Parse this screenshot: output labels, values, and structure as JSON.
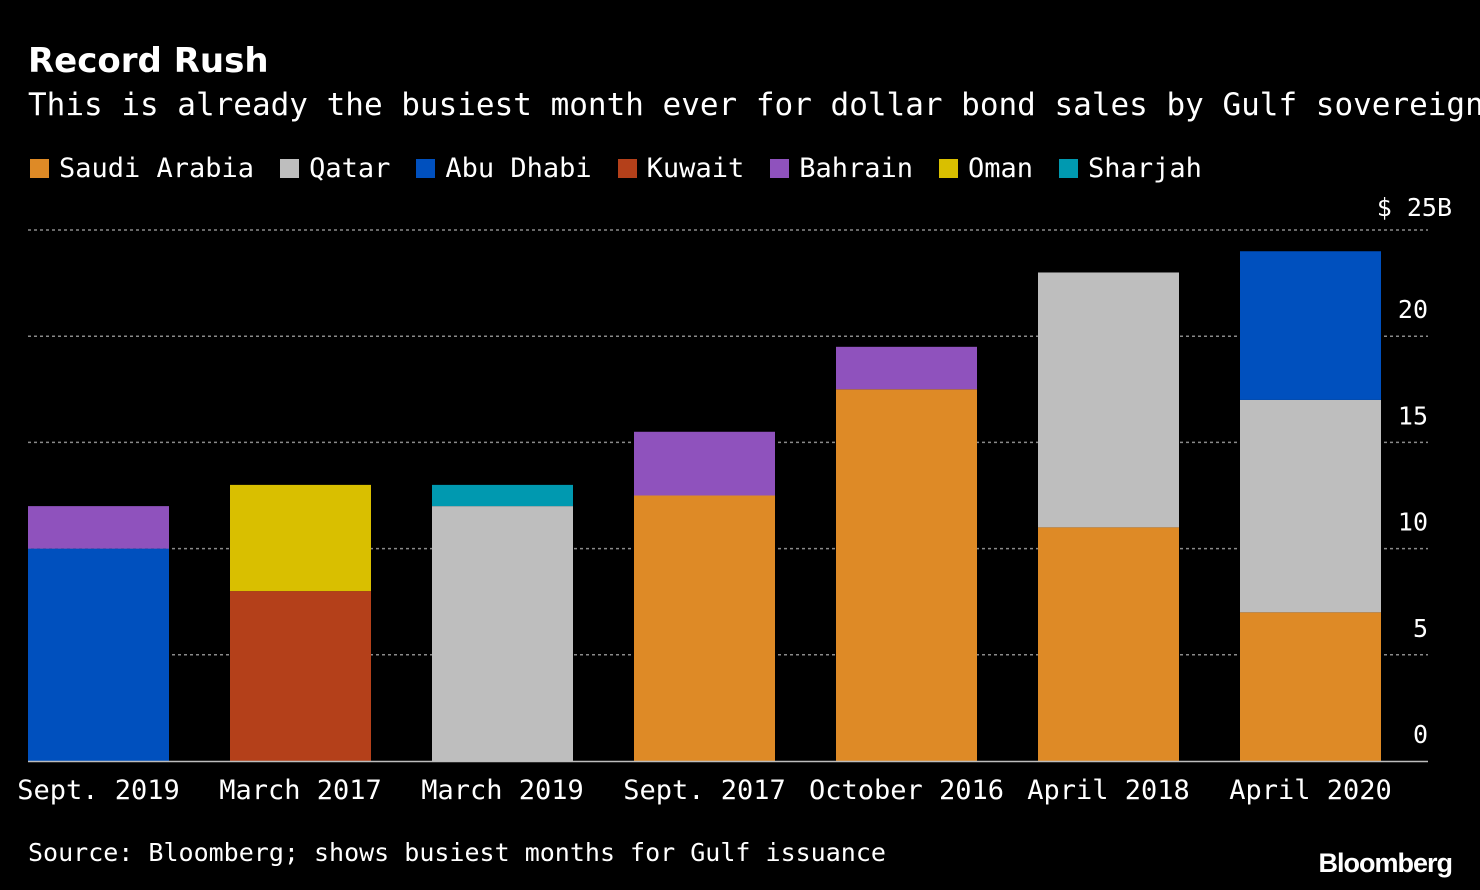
{
  "chart_data": {
    "type": "bar",
    "stacked": true,
    "title": "Record Rush",
    "subtitle": "This is already the busiest month ever for dollar bond sales by Gulf sovereigns",
    "source": "Source: Bloomberg; shows busiest months for Gulf issuance",
    "brand": "Bloomberg",
    "y_top_label": "$ 25B",
    "ylim": [
      0,
      25
    ],
    "yticks": [
      0,
      5,
      10,
      15,
      20
    ],
    "gridlines": [
      5,
      10,
      15,
      20,
      25
    ],
    "categories": [
      "Sept. 2019",
      "March 2017",
      "March 2019",
      "Sept. 2017",
      "October 2016",
      "April 2018",
      "April 2020"
    ],
    "legend": [
      "Saudi Arabia",
      "Qatar",
      "Abu Dhabi",
      "Kuwait",
      "Bahrain",
      "Oman",
      "Sharjah"
    ],
    "series": [
      {
        "name": "Saudi Arabia",
        "color": "#DE8A26",
        "values": [
          0,
          0,
          0,
          12.5,
          17.5,
          11.0,
          7.0
        ]
      },
      {
        "name": "Qatar",
        "color": "#BEBEBE",
        "values": [
          0,
          0,
          12.0,
          0,
          0,
          12.0,
          10.0
        ]
      },
      {
        "name": "Abu Dhabi",
        "color": "#0050BE",
        "values": [
          10.0,
          0,
          0,
          0,
          0,
          0,
          7.0
        ]
      },
      {
        "name": "Kuwait",
        "color": "#B4401A",
        "values": [
          0,
          8.0,
          0,
          0,
          0,
          0,
          0
        ]
      },
      {
        "name": "Bahrain",
        "color": "#8F52BD",
        "values": [
          2.0,
          0,
          0,
          3.0,
          2.0,
          0,
          0
        ]
      },
      {
        "name": "Oman",
        "color": "#D9BF00",
        "values": [
          0,
          5.0,
          0,
          0,
          0,
          0,
          0
        ]
      },
      {
        "name": "Sharjah",
        "color": "#0099B0",
        "values": [
          0,
          0,
          1.0,
          0,
          0,
          0,
          0
        ]
      }
    ]
  }
}
